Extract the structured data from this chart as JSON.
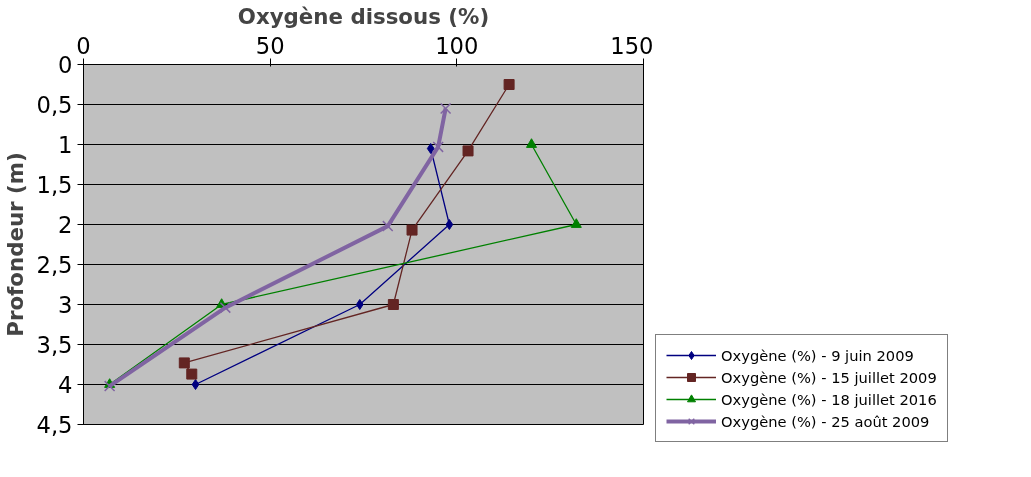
{
  "chart_data": {
    "type": "line",
    "xlabel": "Oxygène dissous (%)",
    "ylabel": "Profondeur (m)",
    "xlim": [
      0,
      150
    ],
    "xticks": [
      0,
      50,
      100,
      150
    ],
    "ylim": [
      4.5,
      0
    ],
    "yticks": [
      0,
      {
        "value": 0.5,
        "label": "0,5"
      },
      1,
      {
        "value": 1.5,
        "label": "1,5"
      },
      2,
      {
        "value": 2.5,
        "label": "2,5"
      },
      3,
      {
        "value": 3.5,
        "label": "3,5"
      },
      4,
      {
        "value": 4.5,
        "label": "4,5"
      }
    ],
    "grid": "y",
    "legend": "right",
    "series": [
      {
        "name": "Oxygène (%) - 9 juin 2009",
        "color": "#000080",
        "marker": "diamond",
        "x": [
          93,
          98,
          74,
          30
        ],
        "values": [
          1.05,
          2.0,
          3.0,
          4.0
        ]
      },
      {
        "name": "Oxygène (%) - 15 juillet 2009",
        "color": "#632523",
        "marker": "square",
        "x": [
          114,
          103,
          88,
          83,
          27,
          29
        ],
        "values": [
          0.25,
          1.08,
          2.07,
          3.0,
          3.73,
          3.87
        ]
      },
      {
        "name": "Oxygène (%) - 18 juillet 2016",
        "color": "#008000",
        "marker": "triangle",
        "x": [
          120,
          132,
          37,
          7
        ],
        "values": [
          1.0,
          2.0,
          3.0,
          4.0
        ]
      },
      {
        "name": "Oxygène (%) - 25 août 2009",
        "color": "#8064a2",
        "marker": "cross",
        "x": [
          97,
          95,
          81.5,
          38,
          7
        ],
        "values": [
          0.55,
          1.03,
          2.02,
          3.04,
          4.02
        ]
      }
    ]
  }
}
